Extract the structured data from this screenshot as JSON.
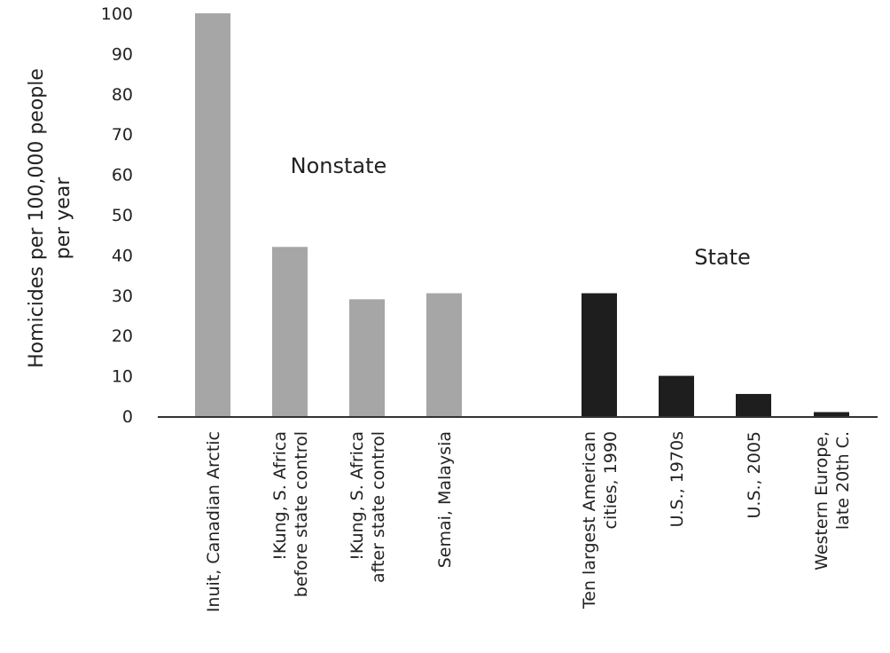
{
  "chart_data": {
    "type": "bar",
    "ylabel_lines": [
      "Homicides per 100,000 people",
      "per year"
    ],
    "ylim": [
      0,
      100
    ],
    "yticks": [
      0,
      10,
      20,
      30,
      40,
      50,
      60,
      70,
      80,
      90,
      100
    ],
    "grid": false,
    "groups": [
      {
        "label": "Nonstate",
        "color": "#a6a6a6"
      },
      {
        "label": "State",
        "color": "#1e1e1e"
      }
    ],
    "bars": [
      {
        "group": 0,
        "value": 100,
        "label_lines": [
          "Inuit, Canadian Arctic"
        ]
      },
      {
        "group": 0,
        "value": 42,
        "label_lines": [
          "!Kung, S. Africa",
          "before state control"
        ]
      },
      {
        "group": 0,
        "value": 29,
        "label_lines": [
          "!Kung, S. Africa",
          "after state control"
        ]
      },
      {
        "group": 0,
        "value": 30.5,
        "label_lines": [
          "Semai, Malaysia"
        ]
      },
      {
        "group": 1,
        "value": 30.5,
        "label_lines": [
          "Ten largest American",
          "cities, 1990"
        ]
      },
      {
        "group": 1,
        "value": 10,
        "label_lines": [
          "U.S., 1970s"
        ]
      },
      {
        "group": 1,
        "value": 5.5,
        "label_lines": [
          "U.S., 2005"
        ]
      },
      {
        "group": 1,
        "value": 1,
        "label_lines": [
          "Western Europe,",
          "late 20th C."
        ]
      }
    ]
  }
}
